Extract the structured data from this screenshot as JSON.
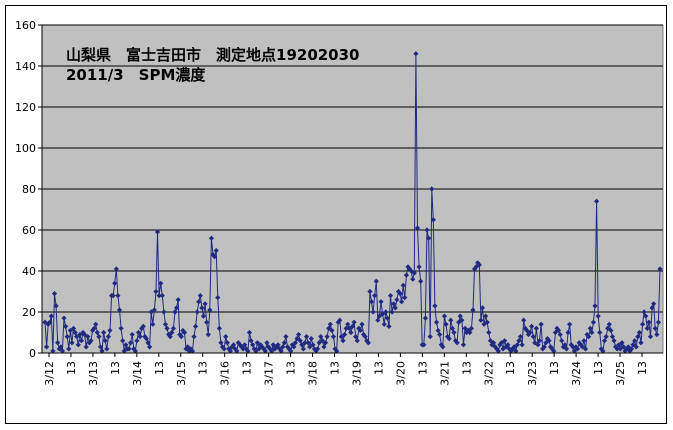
{
  "chart_data": {
    "type": "line",
    "title_lines": [
      "山梨県　富士吉田市　測定地点19202030",
      "2011/3　SPM濃度"
    ],
    "xlabel": "",
    "ylabel": "",
    "ylim": [
      0,
      160
    ],
    "y_ticks": [
      0,
      20,
      40,
      60,
      80,
      100,
      120,
      140,
      160
    ],
    "x_tick_labels": [
      "3/12",
      "13",
      "3/13",
      "13",
      "3/14",
      "13",
      "3/15",
      "13",
      "3/16",
      "13",
      "3/17",
      "13",
      "3/18",
      "13",
      "3/19",
      "13",
      "3/20",
      "13",
      "3/21",
      "13",
      "3/22",
      "13",
      "3/23",
      "13",
      "3/24",
      "13",
      "3/25",
      "13"
    ],
    "grid": true,
    "legend": "none",
    "series": [
      {
        "color": "#1f2a80",
        "marker": "diamond",
        "values": [
          15,
          3,
          14,
          15,
          18,
          1,
          29,
          23,
          5,
          2,
          3,
          1,
          17,
          13,
          8,
          2,
          11,
          5,
          12,
          10,
          8,
          4,
          9,
          6,
          10,
          9,
          3,
          8,
          5,
          6,
          11,
          12,
          14,
          10,
          8,
          3,
          1,
          10,
          6,
          2,
          8,
          11,
          28,
          28,
          34,
          41,
          28,
          21,
          12,
          6,
          1,
          4,
          2,
          2,
          5,
          9,
          2,
          1,
          6,
          10,
          8,
          12,
          13,
          8,
          7,
          5,
          3,
          20,
          14,
          21,
          30,
          59,
          28,
          34,
          28,
          20,
          14,
          12,
          9,
          8,
          10,
          12,
          20,
          22,
          26,
          9,
          8,
          11,
          10,
          2,
          3,
          1,
          2,
          1,
          8,
          13,
          20,
          25,
          28,
          22,
          18,
          24,
          15,
          9,
          21,
          56,
          48,
          47,
          50,
          27,
          12,
          5,
          3,
          2,
          8,
          5,
          2,
          1,
          3,
          4,
          2,
          1,
          5,
          4,
          3,
          2,
          4,
          2,
          1,
          10,
          6,
          4,
          2,
          1,
          5,
          2,
          4,
          3,
          2,
          1,
          5,
          3,
          2,
          1,
          4,
          2,
          3,
          4,
          2,
          1,
          3,
          5,
          8,
          3,
          2,
          1,
          4,
          3,
          5,
          7,
          9,
          6,
          4,
          2,
          5,
          8,
          5,
          3,
          7,
          4,
          2,
          1,
          2,
          5,
          8,
          6,
          3,
          5,
          8,
          12,
          14,
          11,
          8,
          2,
          1,
          15,
          16,
          8,
          6,
          9,
          12,
          14,
          12,
          10,
          13,
          15,
          8,
          6,
          12,
          11,
          14,
          9,
          8,
          6,
          5,
          30,
          25,
          20,
          28,
          35,
          16,
          18,
          25,
          19,
          14,
          20,
          17,
          13,
          28,
          20,
          24,
          22,
          26,
          30,
          29,
          25,
          33,
          27,
          38,
          42,
          41,
          40,
          36,
          39,
          146,
          61,
          42,
          35,
          4,
          4,
          17,
          60,
          56,
          8,
          80,
          65,
          23,
          15,
          11,
          9,
          4,
          3,
          18,
          14,
          8,
          7,
          16,
          12,
          10,
          6,
          5,
          15,
          18,
          16,
          4,
          12,
          10,
          11,
          10,
          12,
          21,
          41,
          42,
          44,
          43,
          16,
          22,
          14,
          18,
          15,
          10,
          6,
          4,
          5,
          3,
          2,
          1,
          4,
          5,
          2,
          6,
          3,
          4,
          2,
          1,
          2,
          3,
          1,
          4,
          6,
          8,
          4,
          16,
          12,
          11,
          9,
          10,
          13,
          8,
          5,
          12,
          4,
          6,
          14,
          2,
          3,
          5,
          7,
          6,
          3,
          2,
          1,
          10,
          12,
          11,
          9,
          6,
          3,
          4,
          2,
          10,
          14,
          4,
          3,
          1,
          3,
          2,
          5,
          4,
          3,
          6,
          2,
          9,
          8,
          12,
          10,
          15,
          23,
          74,
          18,
          10,
          2,
          1,
          6,
          8,
          12,
          14,
          11,
          8,
          6,
          3,
          2,
          4,
          2,
          5,
          3,
          1,
          2,
          3,
          1,
          2,
          4,
          6,
          3,
          8,
          10,
          5,
          14,
          20,
          18,
          12,
          15,
          8,
          22,
          24,
          12,
          9,
          15,
          41
        ]
      }
    ]
  }
}
